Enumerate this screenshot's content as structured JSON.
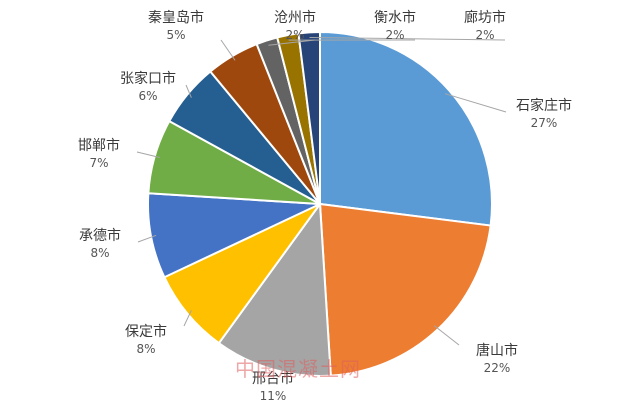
{
  "chart_data": {
    "type": "pie",
    "title": "",
    "start_angle_deg": 0,
    "direction": "clockwise",
    "slices": [
      {
        "label": "石家庄市",
        "value": 27,
        "value_label": "27%",
        "color": "#5b9bd5"
      },
      {
        "label": "唐山市",
        "value": 22,
        "value_label": "22%",
        "color": "#ed7d31"
      },
      {
        "label": "邢台市",
        "value": 11,
        "value_label": "11%",
        "color": "#a5a5a5"
      },
      {
        "label": "保定市",
        "value": 8,
        "value_label": "8%",
        "color": "#ffc000"
      },
      {
        "label": "承德市",
        "value": 8,
        "value_label": "8%",
        "color": "#4472c4"
      },
      {
        "label": "邯郸市",
        "value": 7,
        "value_label": "7%",
        "color": "#70ad47"
      },
      {
        "label": "张家口市",
        "value": 6,
        "value_label": "6%",
        "color": "#255e91"
      },
      {
        "label": "秦皇岛市",
        "value": 5,
        "value_label": "5%",
        "color": "#9e480e"
      },
      {
        "label": "沧州市",
        "value": 2,
        "value_label": "2%",
        "color": "#636363"
      },
      {
        "label": "衡水市",
        "value": 2,
        "value_label": "2%",
        "color": "#997300"
      },
      {
        "label": "廊坊市",
        "value": 2,
        "value_label": "2%",
        "color": "#264478"
      }
    ]
  },
  "watermark": {
    "text": "中国混凝土网"
  }
}
